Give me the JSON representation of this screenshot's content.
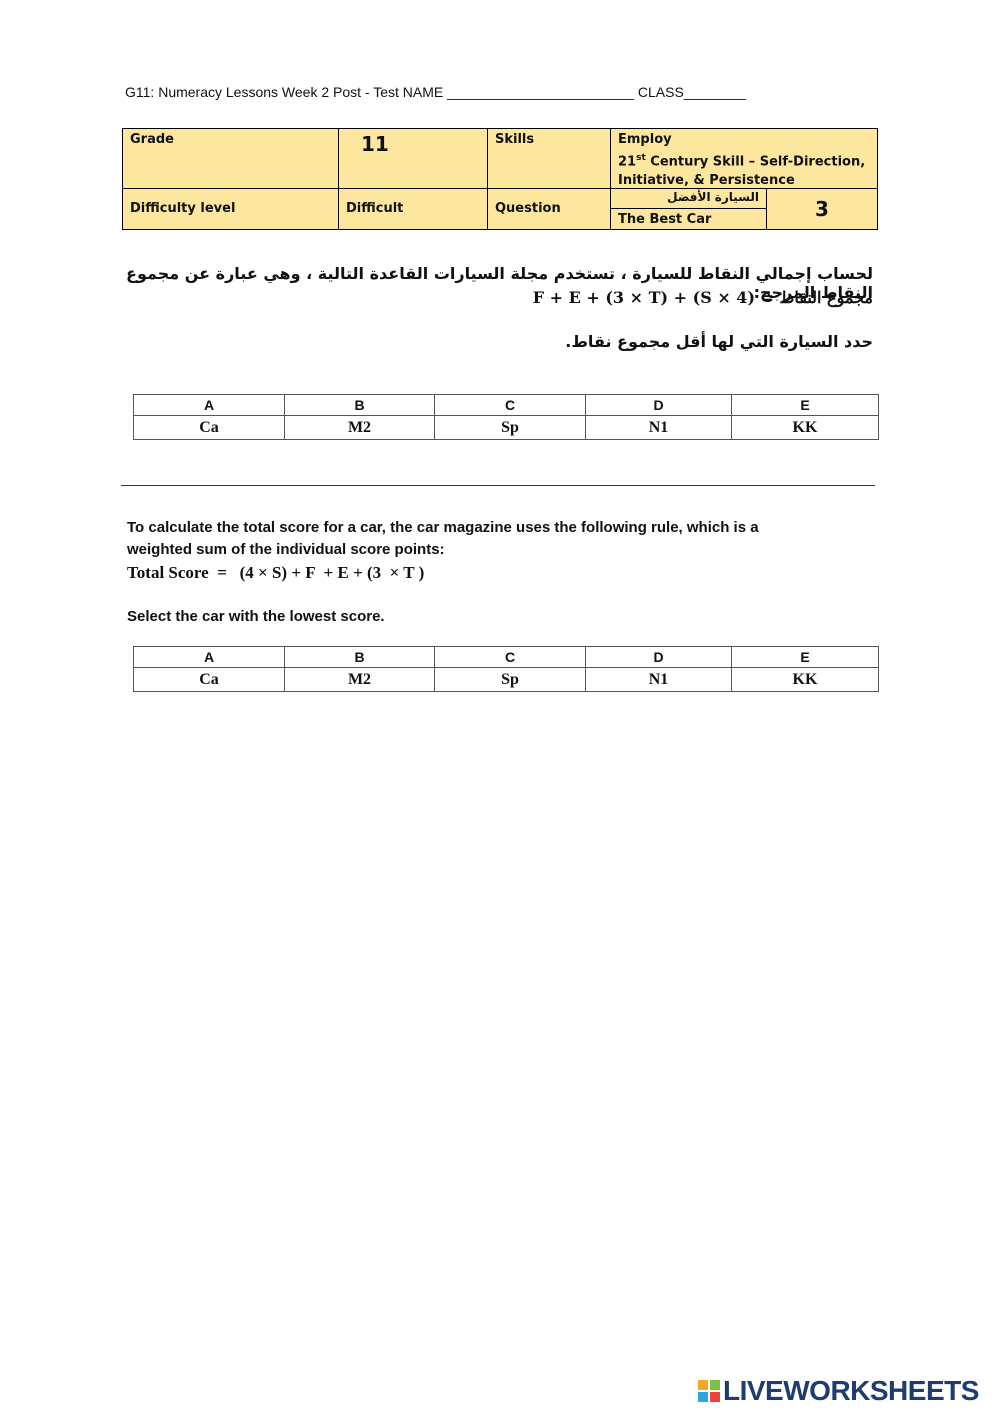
{
  "header": {
    "title": "G11: Numeracy Lessons Week 2 Post - Test NAME ________________________ CLASS________"
  },
  "info_table": {
    "grade_label": "Grade",
    "grade_value": "11",
    "skills_label": "Skills",
    "skills_value": {
      "line1": "Employ",
      "line2_number": "21",
      "line2_sup": "st",
      "line2_rest": " Century Skill – Self-Direction,",
      "line3": "Initiative, & Persistence"
    },
    "difficulty_label": "Difficulty level",
    "difficulty_value": "Difficult",
    "question_label": "Question",
    "question_title_ar": "السيارة الأفضل",
    "question_title_en": "The Best Car",
    "question_number": "3"
  },
  "arabic_section": {
    "intro": "لحساب إجمالي النقاط للسيارة ، تستخدم مجلة السيارات القاعدة التالية ، وهي عبارة عن مجموع النقاط المرجح:",
    "formula": "مجموع النقاط = (4 × S) + F + E + (3 × T)",
    "instruction": "حدد السيارة التي لها أقل مجموع نقاط.",
    "options": {
      "letters": [
        "A",
        "B",
        "C",
        "D",
        "E"
      ],
      "cars": [
        "Ca",
        "M2",
        "Sp",
        "N1",
        "KK"
      ]
    }
  },
  "english_section": {
    "intro_line1": "To calculate the total score for a car, the car magazine uses the following rule, which is a",
    "intro_line2": "weighted sum of the individual score points:",
    "formula": "Total Score  =   (4 × S) + F  + E + (3  × T )",
    "instruction": "Select the car with the lowest score.",
    "options": {
      "letters": [
        "A",
        "B",
        "C",
        "D",
        "E"
      ],
      "cars": [
        "Ca",
        "M2",
        "Sp",
        "N1",
        "KK"
      ]
    }
  },
  "footer": {
    "brand": "LIVEWORKSHEETS"
  }
}
